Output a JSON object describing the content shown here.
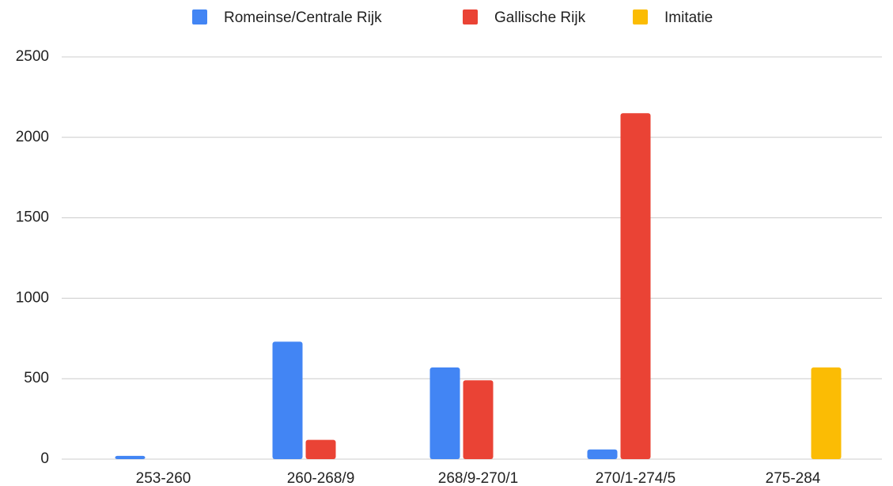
{
  "chart_data": {
    "type": "bar",
    "categories": [
      "253-260",
      "260-268/9",
      "268/9-270/1",
      "270/1-274/5",
      "275-284"
    ],
    "series": [
      {
        "name": "Romeinse/Centrale Rijk",
        "color": "#4285f4",
        "values": [
          20,
          730,
          570,
          60,
          0
        ]
      },
      {
        "name": "Gallische Rijk",
        "color": "#ea4335",
        "values": [
          0,
          120,
          490,
          2150,
          0
        ]
      },
      {
        "name": "Imitatie",
        "color": "#fbbc04",
        "values": [
          0,
          0,
          0,
          0,
          570
        ]
      }
    ],
    "ylim": [
      0,
      2500
    ],
    "yticks": [
      0,
      500,
      1000,
      1500,
      2000,
      2500
    ],
    "grid": true,
    "legend": "top"
  }
}
